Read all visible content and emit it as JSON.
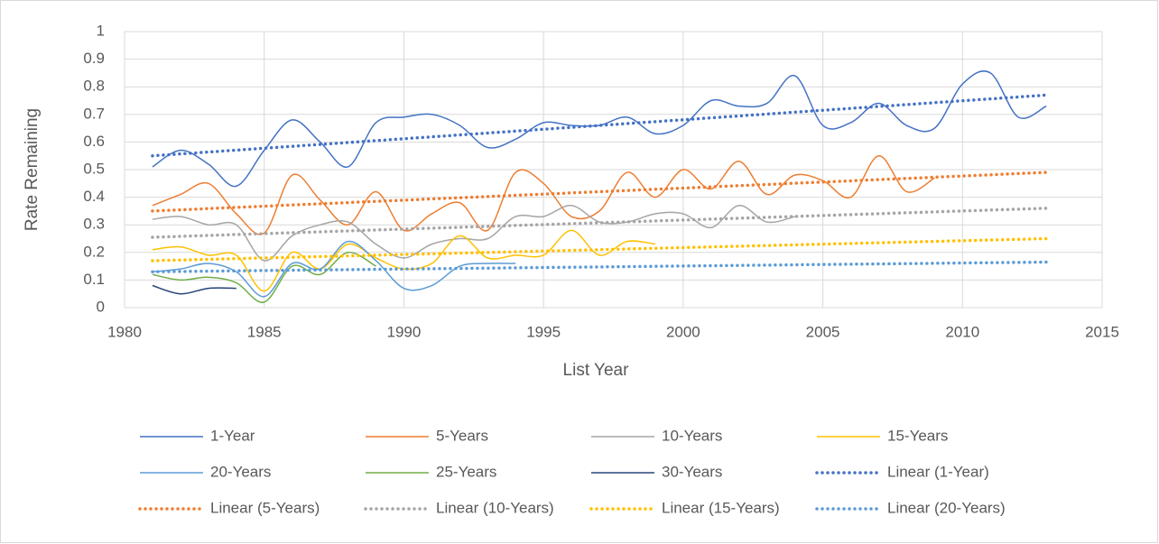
{
  "chart_data": {
    "type": "line",
    "x_label": "List Year",
    "y_label": "Rate Remaining",
    "x": [
      1981,
      1982,
      1983,
      1984,
      1985,
      1986,
      1987,
      1988,
      1989,
      1990,
      1991,
      1992,
      1993,
      1994,
      1995,
      1996,
      1997,
      1998,
      1999,
      2000,
      2001,
      2002,
      2003,
      2004,
      2005,
      2006,
      2007,
      2008,
      2009,
      2010,
      2011,
      2012,
      2013
    ],
    "xlim": [
      1980,
      2015
    ],
    "xticks": [
      1980,
      1985,
      1990,
      1995,
      2000,
      2005,
      2010,
      2015
    ],
    "ylim": [
      0,
      1
    ],
    "yticks": [
      0,
      0.1,
      0.2,
      0.3,
      0.4,
      0.5,
      0.6,
      0.7,
      0.8,
      0.9,
      1
    ],
    "grid": true,
    "smooth": true,
    "legend": "bottom",
    "series": [
      {
        "name": "1-Year",
        "color": "#4472c4",
        "values": [
          0.51,
          0.57,
          0.52,
          0.44,
          0.57,
          0.68,
          0.6,
          0.51,
          0.67,
          0.69,
          0.7,
          0.66,
          0.58,
          0.61,
          0.67,
          0.66,
          0.66,
          0.69,
          0.63,
          0.66,
          0.75,
          0.73,
          0.74,
          0.84,
          0.66,
          0.67,
          0.74,
          0.66,
          0.65,
          0.81,
          0.85,
          0.69,
          0.73
        ]
      },
      {
        "name": "5-Years",
        "color": "#ed7d31",
        "values": [
          0.37,
          0.41,
          0.45,
          0.34,
          0.27,
          0.48,
          0.39,
          0.3,
          0.42,
          0.28,
          0.34,
          0.38,
          0.28,
          0.49,
          0.45,
          0.33,
          0.35,
          0.49,
          0.4,
          0.5,
          0.43,
          0.53,
          0.41,
          0.48,
          0.46,
          0.4,
          0.55,
          0.42,
          0.47,
          null,
          null,
          null,
          null
        ]
      },
      {
        "name": "10-Years",
        "color": "#a5a5a5",
        "values": [
          0.32,
          0.33,
          0.3,
          0.3,
          0.17,
          0.26,
          0.3,
          0.31,
          0.23,
          0.18,
          0.23,
          0.25,
          0.25,
          0.33,
          0.33,
          0.37,
          0.31,
          0.31,
          0.34,
          0.34,
          0.29,
          0.37,
          0.31,
          0.33,
          null,
          null,
          null,
          null,
          null,
          null,
          null,
          null,
          null
        ]
      },
      {
        "name": "15-Years",
        "color": "#ffc000",
        "values": [
          0.21,
          0.22,
          0.19,
          0.19,
          0.06,
          0.2,
          0.14,
          0.23,
          0.18,
          0.14,
          0.16,
          0.26,
          0.18,
          0.19,
          0.19,
          0.28,
          0.19,
          0.24,
          0.23,
          null,
          null,
          null,
          null,
          null,
          null,
          null,
          null,
          null,
          null,
          null,
          null,
          null,
          null
        ]
      },
      {
        "name": "20-Years",
        "color": "#5b9bd5",
        "values": [
          0.13,
          0.14,
          0.16,
          0.13,
          0.04,
          0.16,
          0.14,
          0.24,
          0.17,
          0.07,
          0.08,
          0.15,
          0.16,
          0.16,
          null,
          null,
          null,
          null,
          null,
          null,
          null,
          null,
          null,
          null,
          null,
          null,
          null,
          null,
          null,
          null,
          null,
          null,
          null
        ]
      },
      {
        "name": "25-Years",
        "color": "#70ad47",
        "values": [
          0.12,
          0.1,
          0.11,
          0.09,
          0.02,
          0.15,
          0.12,
          0.2,
          0.15,
          null,
          null,
          null,
          null,
          null,
          null,
          null,
          null,
          null,
          null,
          null,
          null,
          null,
          null,
          null,
          null,
          null,
          null,
          null,
          null,
          null,
          null,
          null,
          null
        ]
      },
      {
        "name": "30-Years",
        "color": "#264478",
        "values": [
          0.08,
          0.05,
          0.07,
          0.07,
          null,
          null,
          null,
          null,
          null,
          null,
          null,
          null,
          null,
          null,
          null,
          null,
          null,
          null,
          null,
          null,
          null,
          null,
          null,
          null,
          null,
          null,
          null,
          null,
          null,
          null,
          null,
          null,
          null
        ]
      },
      {
        "name": "Linear (1-Year)",
        "color": "#4472c4",
        "dotted": true,
        "x": [
          1981,
          2013
        ],
        "values": [
          0.55,
          0.77
        ]
      },
      {
        "name": "Linear (5-Years)",
        "color": "#ed7d31",
        "dotted": true,
        "x": [
          1981,
          2013
        ],
        "values": [
          0.35,
          0.49
        ]
      },
      {
        "name": "Linear (10-Years)",
        "color": "#a5a5a5",
        "dotted": true,
        "x": [
          1981,
          2013
        ],
        "values": [
          0.255,
          0.36
        ]
      },
      {
        "name": "Linear (15-Years)",
        "color": "#ffc000",
        "dotted": true,
        "x": [
          1981,
          2013
        ],
        "values": [
          0.17,
          0.25
        ]
      },
      {
        "name": "Linear (20-Years)",
        "color": "#5b9bd5",
        "dotted": true,
        "x": [
          1981,
          2013
        ],
        "values": [
          0.13,
          0.165
        ]
      }
    ]
  }
}
